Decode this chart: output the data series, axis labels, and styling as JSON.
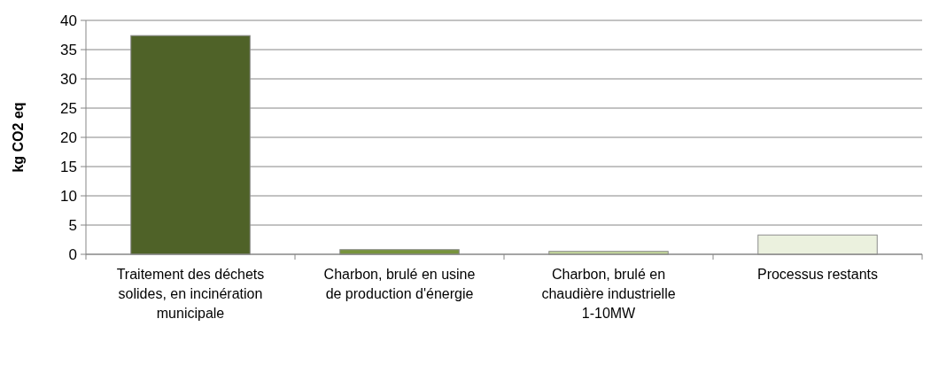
{
  "chart_data": {
    "type": "bar",
    "ylabel": "kg CO2 eq",
    "categories": [
      "Traitement des déchets solides, en incinération municipale",
      "Charbon, brulé en usine de production d'énergie",
      "Charbon, brulé en chaudière industrielle 1-10MW",
      "Processus restants"
    ],
    "values": [
      37.4,
      0.8,
      0.5,
      3.3
    ],
    "colors": [
      "#4f6228",
      "#77933c",
      "#c4d79b",
      "#ebf1de"
    ],
    "ylim": [
      0,
      40
    ],
    "yticks": [
      0,
      5,
      10,
      15,
      20,
      25,
      30,
      35,
      40
    ],
    "grid": "y"
  }
}
